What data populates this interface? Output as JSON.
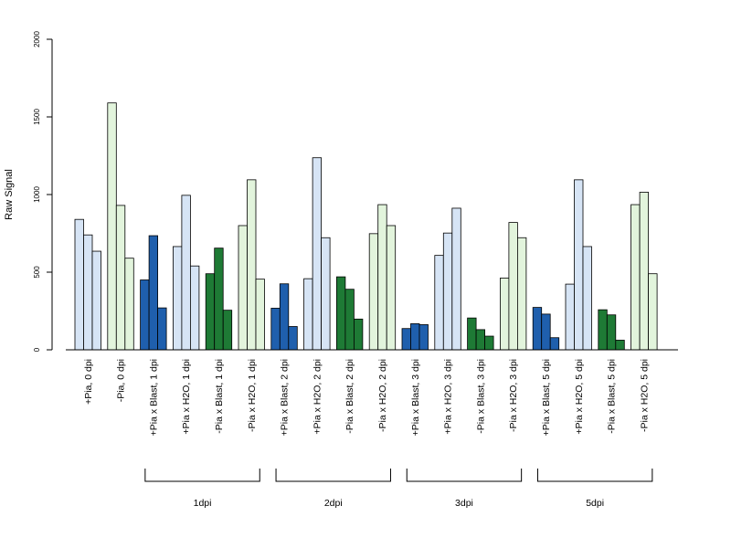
{
  "chart_data": {
    "type": "bar",
    "ylabel": "Raw Signal",
    "ylim": [
      0,
      2000
    ],
    "yticks": [
      "0",
      "500",
      "1000",
      "1500",
      "2000"
    ],
    "groups": [
      {
        "label": "+Pia, 0 dpi",
        "values": [
          840,
          740,
          635
        ],
        "color": "#d6e4f5"
      },
      {
        "label": "-Pia, 0 dpi",
        "values": [
          1590,
          930,
          590
        ],
        "color": "#e2f4dc"
      },
      {
        "label": "+Pia x Blast, 1 dpi",
        "values": [
          450,
          735,
          270
        ],
        "color": "#1f5fad"
      },
      {
        "label": "+Pia x H2O, 1 dpi",
        "values": [
          665,
          995,
          540
        ],
        "color": "#d6e4f5"
      },
      {
        "label": "-Pia x Blast, 1 dpi",
        "values": [
          490,
          655,
          255
        ],
        "color": "#1e7a35"
      },
      {
        "label": "-Pia x H2O, 1 dpi",
        "values": [
          800,
          1095,
          455
        ],
        "color": "#e2f4dc"
      },
      {
        "label": "+Pia x Blast, 2 dpi",
        "values": [
          268,
          425,
          150
        ],
        "color": "#1f5fad"
      },
      {
        "label": "+Pia x H2O, 2 dpi",
        "values": [
          458,
          1237,
          722
        ],
        "color": "#d6e4f5"
      },
      {
        "label": "-Pia x Blast, 2 dpi",
        "values": [
          470,
          390,
          198
        ],
        "color": "#1e7a35"
      },
      {
        "label": "-Pia x H2O, 2 dpi",
        "values": [
          748,
          935,
          800
        ],
        "color": "#e2f4dc"
      },
      {
        "label": "+Pia x Blast, 3 dpi",
        "values": [
          137,
          168,
          162
        ],
        "color": "#1f5fad"
      },
      {
        "label": "+Pia x H2O, 3 dpi",
        "values": [
          608,
          752,
          912
        ],
        "color": "#d6e4f5"
      },
      {
        "label": "-Pia x Blast, 3 dpi",
        "values": [
          205,
          130,
          88
        ],
        "color": "#1e7a35"
      },
      {
        "label": "-Pia x H2O, 3 dpi",
        "values": [
          462,
          820,
          722
        ],
        "color": "#e2f4dc"
      },
      {
        "label": "+Pia x Blast, 5 dpi",
        "values": [
          273,
          230,
          78
        ],
        "color": "#1f5fad"
      },
      {
        "label": "+Pia x H2O, 5 dpi",
        "values": [
          423,
          1095,
          665
        ],
        "color": "#d6e4f5"
      },
      {
        "label": "-Pia x Blast, 5 dpi",
        "values": [
          258,
          225,
          62
        ],
        "color": "#1e7a35"
      },
      {
        "label": "-Pia x H2O, 5 dpi",
        "values": [
          935,
          1015,
          490
        ],
        "color": "#e2f4dc"
      }
    ],
    "brackets": [
      {
        "label": "1dpi",
        "from_group": 2,
        "to_group": 5
      },
      {
        "label": "2dpi",
        "from_group": 6,
        "to_group": 9
      },
      {
        "label": "3dpi",
        "from_group": 10,
        "to_group": 13
      },
      {
        "label": "5dpi",
        "from_group": 14,
        "to_group": 17
      }
    ],
    "grid": false,
    "legend": "none"
  }
}
